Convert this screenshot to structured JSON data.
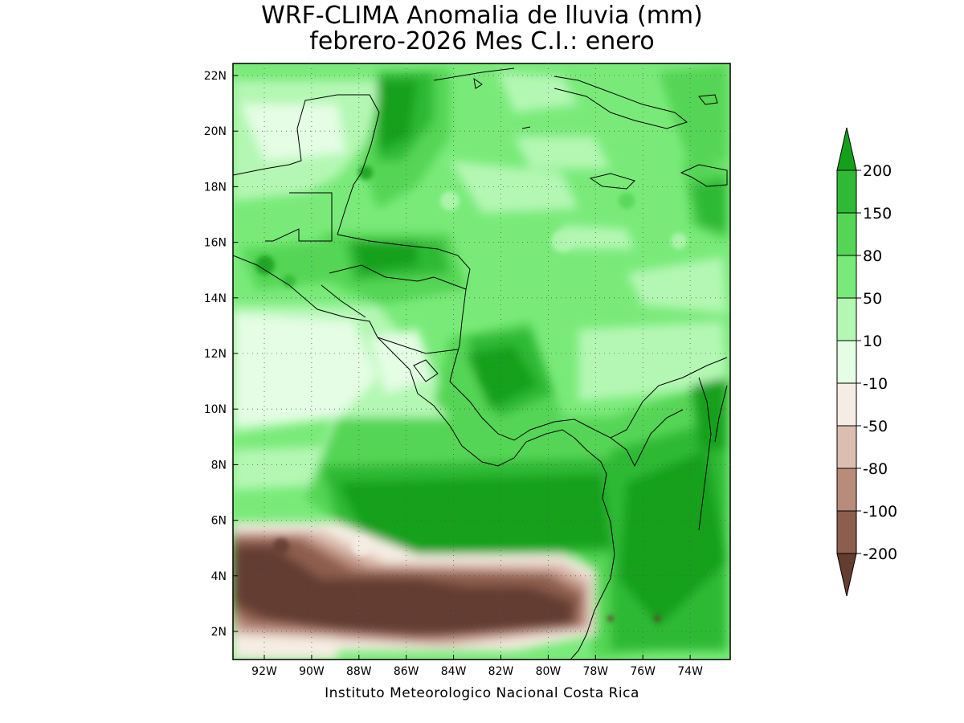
{
  "title_line1": "WRF-CLIMA Anomalia de lluvia (mm)",
  "title_line2": "febrero-2026 Mes C.I.: enero",
  "credit": "Instituto Meteorologico Nacional Costa Rica",
  "axes": {
    "lon_ticks": [
      "92W",
      "90W",
      "88W",
      "86W",
      "84W",
      "82W",
      "80W",
      "78W",
      "76W",
      "74W"
    ],
    "lat_ticks": [
      "22N",
      "20N",
      "18N",
      "16N",
      "14N",
      "12N",
      "10N",
      "8N",
      "6N",
      "4N",
      "2N"
    ]
  },
  "legend": {
    "labels": [
      "200",
      "150",
      "80",
      "50",
      "10",
      "-10",
      "-50",
      "-80",
      "-100",
      "-200"
    ],
    "colors": {
      "gt200": "#15a01a",
      "150_200": "#2fb935",
      "80_150": "#55d555",
      "50_80": "#79ea79",
      "10_50": "#b4f7b4",
      "m10_10": "#e4fde4",
      "neutral": "#ffffff",
      "m50_m10": "#f5ede3",
      "m80_m50": "#dcbeb1",
      "m100_m80": "#b98b7b",
      "m200_m100": "#8d5d4e",
      "lt_m200": "#643d30"
    }
  }
}
